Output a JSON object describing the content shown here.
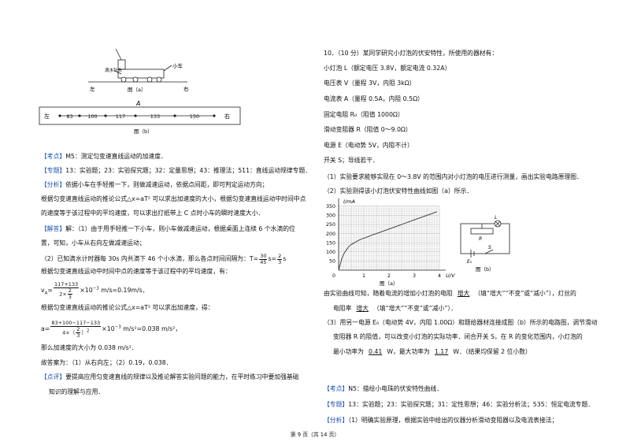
{
  "fig_a": {
    "drip": "滴水针头",
    "cart": "小车",
    "left": "左",
    "right": "右",
    "caption": "图（a）"
  },
  "fig_b": {
    "left": "左",
    "right": "右",
    "point": "A",
    "segments": [
      "83",
      "100",
      "117",
      "133",
      "150"
    ],
    "caption": "图（b）"
  },
  "left_text": {
    "kaodian": {
      "tag": "【考点】",
      "text": "M5：测定匀变速直线运动的加速度．"
    },
    "zhuanti": {
      "tag": "【专题】",
      "text": "13：实验题；23：实验探究题；32：定量思想；43：推理法；511：直线运动规律专题．"
    },
    "fenxi": {
      "tag": "【分析】",
      "lines": [
        "依据小车在手轻推一下，则做减速运动，依据点间距，即可判定运动方向；",
        "根据匀变速直线运动的推论公式△x=aT² 可以求出加速度的大小，根据匀变速直线运动中时间中点",
        "的速度等于该过程中的平均速度，可以求出打纸带上 C 点时小车的瞬时速度大小．"
      ]
    },
    "jieda": {
      "tag": "【解答】",
      "lines": [
        "解：（1）由于用手轻推一下小车，则小车做减速运动，根据桌面上连续 6 个水滴的位",
        "置，可知，小车从右向左做减速运动；"
      ],
      "period": {
        "text": "（2）已知滴水计时器每 30s 内共滴下 46 个小水滴，那么各点时间间隔为：T=",
        "num1": "30",
        "den1": "45",
        "mid": "s=",
        "num2": "2",
        "den2": "3",
        "unit": "s"
      },
      "line_avg": "根据匀变速直线运动中时间中点的速度等于该过程中的平均速度，有：",
      "va": {
        "lhs": "v",
        "sub": "A",
        "eq": "=",
        "num": "117+133",
        "den": "2×",
        "den_num": "2",
        "den_den": "3",
        "rest": "×10",
        "exp": "−3",
        "tail": " m/s=0.19m/s．"
      },
      "line_acc": "根据匀变速直线运动的推论公式△x=aT² 可以求出加速度，得：",
      "a": {
        "lhs": "a=",
        "num": "83+100−117−133",
        "den": "4×（",
        "den_num": "2",
        "den_den": "3",
        "den_close": "）",
        "den_exp": "2",
        "rest": "×10",
        "exp": "−3",
        "tail": " m/s²=0.038 m/s²，"
      },
      "line_mag": "那么加速度的大小为 0.038 m/s²．",
      "answer": "故答案为：（1）从右向左；（2）0.19，0.038．"
    },
    "dianping": {
      "tag": "【点评】",
      "lines": [
        "要提高应用匀变速直线的规律以及推论解答实验问题的能力，在平时练习中要加强基础",
        "知识的理解与应用．"
      ]
    }
  },
  "right_text": {
    "intro": [
      "10．（10 分）某同学研究小灯泡的伏安特性，所使用的器材有：",
      "小灯泡 L（额定电压 3.8V，额定电流 0.32A）",
      "电压表 V（量程 3V，内阻 3kΩ）",
      "电流表 A（量程 0.5A，内阻 0.5Ω）",
      "固定电阻 R₀（阻值 1000Ω）",
      "滑动变阻器 R（阻值 0～9.0Ω）",
      "电源 E（电动势 5V，内阻不计）",
      "开关 S；导线若干．",
      "（1）实验要求能够实现在 0～3.8V 的范围内对小灯泡的电压进行测量，画出实验电路原理图．",
      "（2）实验测得该小灯泡伏安特性曲线如图（a）所示．"
    ],
    "graph": {
      "y_label": "I/mA",
      "x_label": "U/V",
      "yticks": [
        "350",
        "300",
        "250",
        "200",
        "150",
        "100",
        "50"
      ],
      "xticks": [
        "0",
        "1",
        "2",
        "3",
        "4"
      ],
      "caption": "图（a）"
    },
    "circuit": {
      "R": "R",
      "L": "L",
      "E": "E₀",
      "S": "S",
      "caption": "图（b）"
    },
    "q2": {
      "a": "由实验曲线可知，随着电流的增加小灯泡的电阻",
      "ans1": "增大",
      "b": "（填“增大”“不变”或“减小”），灯丝的",
      "c": "电阻率",
      "ans2": "增大",
      "d": "（填“增大”“不变”或“减小”）．"
    },
    "q3": {
      "lines": [
        "（3）用另一电源 E₀（电动势 4V，内阻 1.00Ω）和题给器材连接成图（b）所示的电路图，调节滑动",
        "变阻器 R 的阻值，可以改变小灯泡的实际功率．闭合开关 S，在 R 的变化范围内，小灯泡的"
      ],
      "a": "最小功率为",
      "ans1": "0.41",
      "b": "W，最大功率为",
      "ans2": "1.17",
      "c": "W．（结果均保留 2 位小数）"
    },
    "kaodian": {
      "tag": "【考点】",
      "text": "N5：描绘小电珠的伏安特性曲线．"
    },
    "zhuanti": {
      "tag": "【专题】",
      "text": "13：实验题；23：实验探究题；31：定性思想；46：实验分析法；535：恒定电流专题．"
    },
    "fenxi": {
      "tag": "【分析】",
      "text": "（1）明确实验原理，根据实验中给出的仪器分析滑动变阻器以及电流表接法；"
    }
  },
  "footer": "第 9 页（共 14 页）"
}
